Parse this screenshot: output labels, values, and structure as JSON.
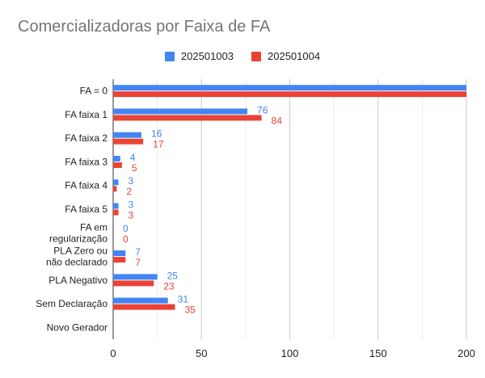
{
  "chart_data": {
    "type": "bar",
    "orientation": "horizontal",
    "title": "Comercializadoras por Faixa de FA",
    "categories": [
      "FA = 0",
      "FA faixa 1",
      "FA faixa 2",
      "FA faixa 3",
      "FA faixa 4",
      "FA faixa 5",
      "FA em regularização",
      "PLA Zero ou não declarado",
      "PLA Negativo",
      "Sem Declaração",
      "Novo Gerador"
    ],
    "series": [
      {
        "name": "202501003",
        "color": "#4285f4",
        "values": [
          200,
          76,
          16,
          4,
          3,
          3,
          0,
          7,
          25,
          31,
          null
        ],
        "labels": [
          "",
          "76",
          "16",
          "4",
          "3",
          "3",
          "0",
          "7",
          "25",
          "31",
          ""
        ]
      },
      {
        "name": "202501004",
        "color": "#ea4335",
        "values": [
          200,
          84,
          17,
          5,
          2,
          3,
          0,
          7,
          23,
          35,
          null
        ],
        "labels": [
          "",
          "84",
          "17",
          "5",
          "2",
          "3",
          "0",
          "7",
          "23",
          "35",
          ""
        ]
      }
    ],
    "xlim": [
      0,
      200
    ],
    "xticks": [
      "0",
      "50",
      "100",
      "150",
      "200"
    ],
    "grid": true,
    "legend_position": "top"
  }
}
